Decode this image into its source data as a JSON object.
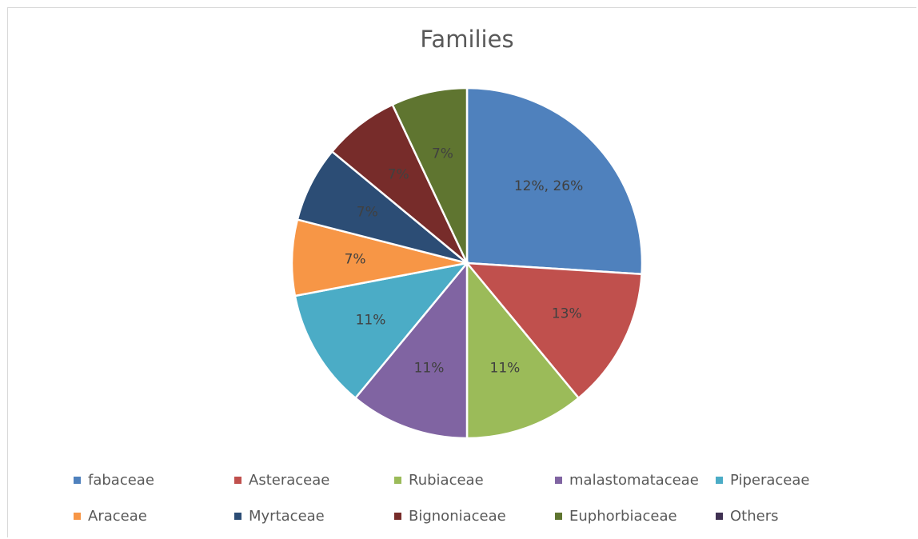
{
  "chart_data": {
    "type": "pie",
    "title": "Families",
    "categories": [
      "fabaceae",
      "Asteraceae",
      "Rubiaceae",
      "malastomataceae",
      "Piperaceae",
      "Araceae",
      "Myrtaceae",
      "Bignoniaceae",
      "Euphorbiaceae",
      "Others"
    ],
    "values": [
      26,
      13,
      11,
      11,
      11,
      7,
      7,
      7,
      7,
      0
    ],
    "data_labels": [
      "12%, 26%",
      "13%",
      "11%",
      "11%",
      "11%",
      "7%",
      "7%",
      "7%",
      "7%",
      ""
    ],
    "colors": [
      "#4f81bd",
      "#c0504d",
      "#9bbb59",
      "#8064a2",
      "#4bacc6",
      "#f79646",
      "#2c4d75",
      "#772c2a",
      "#5f7530",
      "#403152"
    ],
    "start_angle_deg": 0,
    "direction": "clockwise",
    "legend_position": "bottom"
  }
}
